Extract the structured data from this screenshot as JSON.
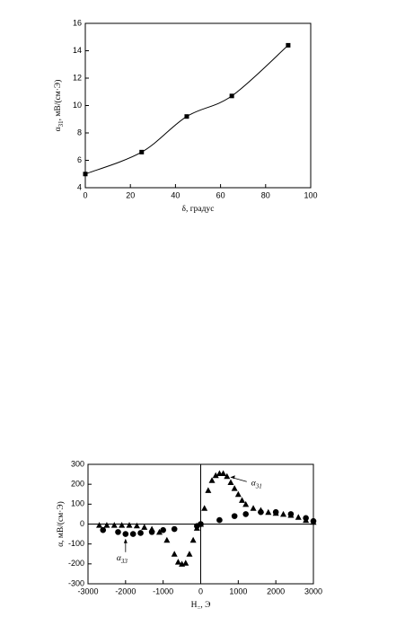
{
  "chart_data": [
    {
      "type": "scatter",
      "ylabel": "α",
      "ylabel_sub": "31",
      "ylabel_rest": ", мВ/(см·Э)",
      "xlabel": "δ, градус",
      "xlim": [
        0,
        100
      ],
      "xticks": [
        0,
        20,
        40,
        60,
        80,
        100
      ],
      "ylim": [
        4,
        16
      ],
      "yticks": [
        4,
        6,
        8,
        10,
        12,
        14,
        16
      ],
      "fit_line": true,
      "zero_lines": false,
      "series": [
        {
          "marker": "square",
          "color": "#000000",
          "x": [
            0,
            25,
            45,
            65,
            90
          ],
          "values": [
            5.0,
            6.6,
            9.2,
            10.7,
            14.4
          ]
        }
      ]
    },
    {
      "type": "scatter",
      "ylabel": "α, мВ/(см·Э)",
      "xlabel": "H",
      "xlabel_sub": "=",
      "xlabel_rest": ", Э",
      "xlim": [
        -3000,
        3000
      ],
      "xticks": [
        -3000,
        -2000,
        -1000,
        0,
        1000,
        2000,
        3000
      ],
      "ylim": [
        -300,
        300
      ],
      "yticks": [
        -300,
        -200,
        -100,
        0,
        100,
        200,
        300
      ],
      "fit_line": false,
      "zero_lines": true,
      "series": [
        {
          "marker": "triangle",
          "color": "#000000",
          "x": [
            -2700,
            -2500,
            -2300,
            -2100,
            -1900,
            -1700,
            -1500,
            -1300,
            -1100,
            -900,
            -700,
            -600,
            -500,
            -400,
            -300,
            -200,
            -100,
            0,
            100,
            200,
            300,
            400,
            500,
            600,
            700,
            800,
            900,
            1000,
            1100,
            1200,
            1400,
            1600,
            1800,
            2000,
            2200,
            2400,
            2600,
            2800,
            3000
          ],
          "values": [
            -5,
            -5,
            -5,
            -5,
            -5,
            -8,
            -15,
            -25,
            -40,
            -80,
            -150,
            -190,
            -200,
            -195,
            -150,
            -80,
            -20,
            0,
            80,
            170,
            220,
            245,
            255,
            255,
            240,
            210,
            180,
            150,
            120,
            100,
            80,
            70,
            60,
            55,
            50,
            45,
            35,
            20,
            10
          ]
        },
        {
          "marker": "circle",
          "color": "#000000",
          "x": [
            -2600,
            -2200,
            -2000,
            -1800,
            -1600,
            -1300,
            -1000,
            -700,
            -100,
            0,
            500,
            900,
            1200,
            1600,
            2000,
            2400,
            2800,
            3000
          ],
          "values": [
            -30,
            -40,
            -50,
            -50,
            -45,
            -40,
            -30,
            -25,
            -10,
            0,
            20,
            40,
            50,
            60,
            60,
            50,
            30,
            15
          ]
        }
      ],
      "annotations": [
        {
          "text": "α",
          "sub": "31",
          "at": [
            700,
            240
          ]
        },
        {
          "text": "α",
          "sub": "33",
          "at": [
            -2000,
            -60
          ]
        }
      ]
    }
  ]
}
